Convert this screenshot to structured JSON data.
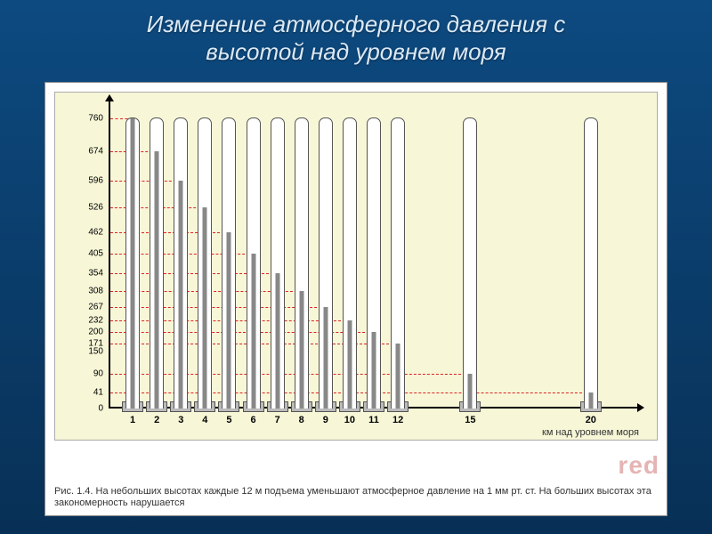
{
  "title_line1": "Изменение атмосферного давления с",
  "title_line2": "высотой над уровнем моря",
  "watermark": "red",
  "caption": "Рис. 1.4. На небольших высотах каждые 12 м подъема уменьшают атмосферное давление на 1 мм рт. ст. На больших высотах эта закономерность нарушается",
  "xaxis_title": "км над уровнем моря",
  "chart": {
    "type": "bar",
    "background_color": "#f7f7d8",
    "grid_color": "#d22",
    "tube_color": "#ffffff",
    "mercury_color": "#888888",
    "axis_color": "#000000",
    "title_fontsize": 26,
    "label_fontsize": 10,
    "xlim": [
      0,
      22
    ],
    "ylim": [
      0,
      800
    ],
    "tube_height": 760,
    "yticks": [
      0,
      41,
      90,
      150,
      171,
      200,
      232,
      267,
      308,
      354,
      405,
      462,
      526,
      596,
      674,
      760
    ],
    "xticks": [
      1,
      2,
      3,
      4,
      5,
      6,
      7,
      8,
      9,
      10,
      11,
      12,
      15,
      20
    ],
    "series": [
      {
        "x": 1,
        "p": 760
      },
      {
        "x": 2,
        "p": 674
      },
      {
        "x": 3,
        "p": 596
      },
      {
        "x": 4,
        "p": 526
      },
      {
        "x": 5,
        "p": 462
      },
      {
        "x": 6,
        "p": 405
      },
      {
        "x": 7,
        "p": 354
      },
      {
        "x": 8,
        "p": 308
      },
      {
        "x": 9,
        "p": 267
      },
      {
        "x": 10,
        "p": 232
      },
      {
        "x": 11,
        "p": 200
      },
      {
        "x": 12,
        "p": 171
      },
      {
        "x": 15,
        "p": 90
      },
      {
        "x": 20,
        "p": 41
      }
    ]
  }
}
